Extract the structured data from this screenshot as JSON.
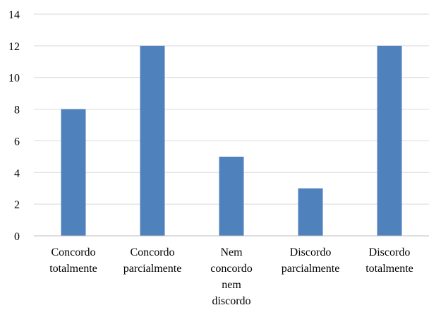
{
  "chart_data": {
    "type": "bar",
    "categories": [
      [
        "Concordo",
        "totalmente"
      ],
      [
        "Concordo",
        "parcialmente"
      ],
      [
        "Nem",
        "concordo",
        "nem",
        "discordo"
      ],
      [
        "Discordo",
        "parcialmente"
      ],
      [
        "Discordo",
        "totalmente"
      ]
    ],
    "values": [
      8,
      12,
      5,
      3,
      12
    ],
    "ylim": [
      0,
      14
    ],
    "yticks": [
      0,
      2,
      4,
      6,
      8,
      10,
      12,
      14
    ],
    "grid": true,
    "colors": {
      "bar": "#4f81bd",
      "grid": "#d9d9d9",
      "axis": "#bfbfbf"
    }
  }
}
